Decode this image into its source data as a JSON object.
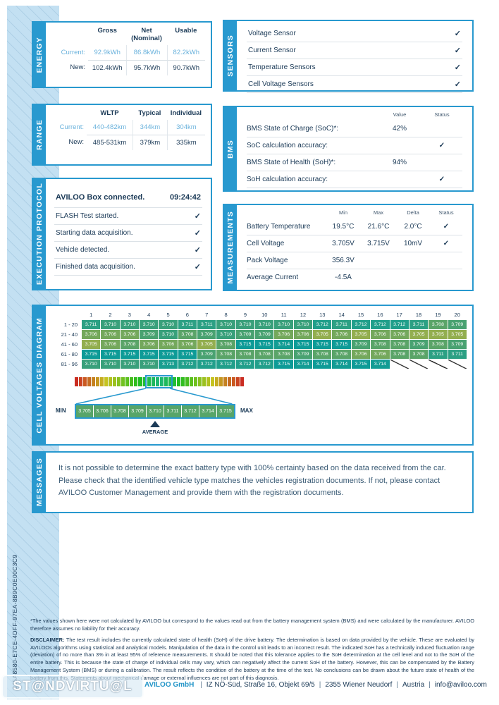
{
  "page": {
    "guid": "345A8580-E7CE-4DFF-97EA-8B9C0E00C3C9",
    "watermark": "ST@NDVIRTU@L"
  },
  "colors": {
    "accent": "#2899CF",
    "navy": "#1B3A57",
    "current_blue": "#6AB2DC",
    "legend_cell_green": "#57A569"
  },
  "sections": {
    "energy": {
      "label": "ENERGY",
      "columns": [
        "Gross",
        "Net\n(Nominal)",
        "Usable"
      ],
      "rows": [
        {
          "label": "Current:",
          "values": [
            "92.9kWh",
            "86.8kWh",
            "82.2kWh"
          ],
          "style": "cur"
        },
        {
          "label": "New:",
          "values": [
            "102.4kWh",
            "95.7kWh",
            "90.7kWh"
          ],
          "style": "new"
        }
      ]
    },
    "sensors": {
      "label": "SENSORS",
      "items": [
        "Voltage Sensor",
        "Current Sensor",
        "Temperature Sensors",
        "Cell Voltage Sensors"
      ]
    },
    "range": {
      "label": "RANGE",
      "columns": [
        "WLTP",
        "Typical",
        "Individual"
      ],
      "rows": [
        {
          "label": "Current:",
          "values": [
            "440-482km",
            "344km",
            "304km"
          ],
          "style": "cur"
        },
        {
          "label": "New:",
          "values": [
            "485-531km",
            "379km",
            "335km"
          ],
          "style": "new"
        }
      ]
    },
    "bms": {
      "label": "BMS",
      "headers": [
        "Value",
        "Status"
      ],
      "rows": [
        {
          "label": "BMS State of Charge (SoC)*:",
          "value": "42%",
          "check": false
        },
        {
          "label": "SoC calculation accuracy:",
          "value": "",
          "check": true
        },
        {
          "label": "BMS State of Health (SoH)*:",
          "value": "94%",
          "check": false
        },
        {
          "label": "SoH calculation accuracy:",
          "value": "",
          "check": true
        }
      ]
    },
    "execution": {
      "label": "EXECUTION PROTOCOL",
      "first": {
        "label": "AVILOO Box connected.",
        "time": "09:24:42"
      },
      "items": [
        "FLASH Test started.",
        "Starting data acquisition.",
        "Vehicle detected.",
        "Finished data acquisition."
      ]
    },
    "measurements": {
      "label": "MEASUREMENTS",
      "headers": [
        "Min",
        "Max",
        "Delta",
        "Status"
      ],
      "rows": [
        {
          "label": "Battery Temperature",
          "min": "19.5°C",
          "max": "21.6°C",
          "delta": "2.0°C",
          "check": true
        },
        {
          "label": "Cell Voltage",
          "min": "3.705V",
          "max": "3.715V",
          "delta": "10mV",
          "check": true
        },
        {
          "label": "Pack Voltage",
          "min": "356.3V",
          "max": "",
          "delta": "",
          "check": false
        },
        {
          "label": "Average Current",
          "min": "-4.5A",
          "max": "",
          "delta": "",
          "check": false
        }
      ]
    },
    "cell_voltages": {
      "label": "CELL VOLTAGES DIAGRAM",
      "col_numbers": [
        1,
        2,
        3,
        4,
        5,
        6,
        7,
        8,
        9,
        10,
        11,
        12,
        13,
        14,
        15,
        16,
        17,
        18,
        19,
        20
      ],
      "rows": [
        {
          "label": "1 - 20",
          "values": [
            "3.711",
            "3.710",
            "3.710",
            "3.710",
            "3.710",
            "3.711",
            "3.711",
            "3.710",
            "3.710",
            "3.710",
            "3.710",
            "3.710",
            "3.712",
            "3.711",
            "3.712",
            "3.712",
            "3.712",
            "3.711",
            "3.708",
            "3.709"
          ]
        },
        {
          "label": "21 - 40",
          "values": [
            "3.706",
            "3.706",
            "3.706",
            "3.709",
            "3.710",
            "3.708",
            "3.709",
            "3.710",
            "3.709",
            "3.709",
            "3.706",
            "3.706",
            "3.705",
            "3.706",
            "3.705",
            "3.706",
            "3.706",
            "3.705",
            "3.705",
            "3.705"
          ]
        },
        {
          "label": "41 - 60",
          "values": [
            "3.705",
            "3.706",
            "3.708",
            "3.706",
            "3.706",
            "3.706",
            "3.705",
            "3.708",
            "3.715",
            "3.715",
            "3.714",
            "3.715",
            "3.715",
            "3.715",
            "3.709",
            "3.708",
            "3.708",
            "3.709",
            "3.708",
            "3.709"
          ]
        },
        {
          "label": "61 - 80",
          "values": [
            "3.715",
            "3.715",
            "3.715",
            "3.715",
            "3.715",
            "3.715",
            "3.709",
            "3.708",
            "3.708",
            "3.708",
            "3.708",
            "3.709",
            "3.708",
            "3.708",
            "3.706",
            "3.706",
            "3.708",
            "3.708",
            "3.711",
            "3.711"
          ]
        },
        {
          "label": "81 - 96",
          "values": [
            "3.710",
            "3.710",
            "3.710",
            "3.710",
            "3.713",
            "3.712",
            "3.712",
            "3.712",
            "3.712",
            "3.712",
            "3.715",
            "3.714",
            "3.715",
            "3.714",
            "3.715",
            "3.714",
            "",
            "",
            "",
            ""
          ]
        }
      ],
      "color_map": {
        "3.705": "#93AE4F",
        "3.706": "#74A85C",
        "3.708": "#5AA468",
        "3.709": "#49A271",
        "3.710": "#39A07B",
        "3.711": "#2CA084",
        "3.712": "#219F8B",
        "3.713": "#1A9E90",
        "3.714": "#139C94",
        "3.715": "#0E9B97"
      },
      "legend": {
        "min_label": "MIN",
        "max_label": "MAX",
        "average_label": "AVERAGE",
        "values": [
          "3.705",
          "3.706",
          "3.708",
          "3.709",
          "3.710",
          "3.711",
          "3.712",
          "3.714",
          "3.715"
        ],
        "strip_segment_count": 40
      }
    },
    "messages": {
      "label": "MESSAGES",
      "text": "It is not possible to determine the exact battery type with 100% certainty based on the data received from the car. Please check that the identified vehicle type matches the vehicles registration documents. If not, please contact AVILOO Customer Management and provide them with the registration documents."
    }
  },
  "footer": {
    "note": "*The values shown here were not calculated by AVILOO but correspond to the values read out from the battery management system (BMS) and were calculated by the manufacturer. AVILOO therefore assumes no liability for their accuracy.",
    "disclaimer_label": "DISCLAIMER:",
    "disclaimer_text": "The test result includes the currently calculated state of health (SoH) of the drive battery. The determination is based on data provided by the vehicle. These are evaluated by AVILOOs algorithms using statistical and analytical models. Manipulation of the data in the control unit leads to an incorrect result. The indicated SoH has a technically induced fluctuation range (deviation) of no more than 3% in at least 95% of reference measurements. It should be noted that this tolerance applies to the SoH determination at the cell level and not to the SoH of the entire battery. This is because the state of charge of individual cells may vary, which can negatively affect the current SoH of the battery. However, this can be compensated by the Battery Management System (BMS) or during a calibration. The result reflects the condition of the battery at the time of the test. No conclusions can be drawn about the future state of health of the battery from this. Statements about mechanical damage or external influences are not part of this diagnosis.",
    "company": "AVILOO GmbH",
    "address_parts": [
      "IZ NÖ-Süd, Straße 16, Objekt 69/5",
      "2355 Wiener Neudorf",
      "Austria",
      "info@aviloo.com"
    ]
  }
}
